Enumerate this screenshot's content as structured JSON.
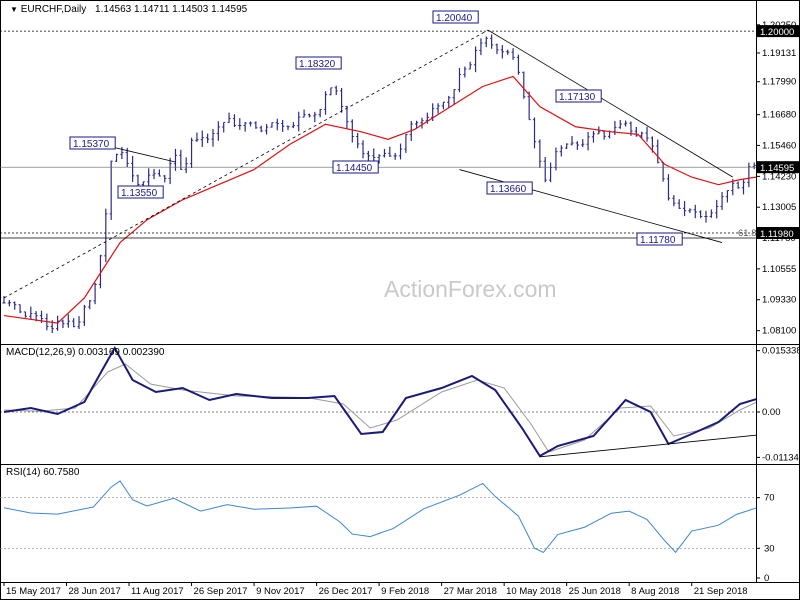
{
  "header": {
    "symbol": "EURCHF,Daily",
    "ohlc": "1.14563 1.14711 1.14503 1.14595"
  },
  "watermark": "ActionForex.com",
  "colors": {
    "bars": "#2b2b8a",
    "sma": "#e01010",
    "macd": "#1a1a7a",
    "signal": "#9a9a9a",
    "rsi": "#3a86d8",
    "grid": "#000000",
    "label_border": "#1a1a8a",
    "price_tag_bg": "#000000"
  },
  "chart_data": [
    {
      "type": "line",
      "panel": "price",
      "title": "EURCHF,Daily",
      "ylim": [
        1.0765,
        1.206
      ],
      "yticks": [
        "1.20250",
        "1.19131",
        "1.17990",
        "1.16680",
        "1.15460",
        "1.14230",
        "1.13005",
        "1.11780",
        "1.10555",
        "1.09330",
        "1.08100"
      ],
      "xticks": [
        "15 May 2017",
        "28 Jun 2017",
        "11 Aug 2017",
        "26 Sep 2017",
        "9 Nov 2017",
        "26 Dec 2017",
        "9 Feb 2018",
        "27 Mar 2018",
        "10 May 2018",
        "25 Jun 2018",
        "8 Aug 2018",
        "21 Sep 2018"
      ],
      "close_path": [
        [
          0,
          1.092
        ],
        [
          10,
          1.089
        ],
        [
          20,
          1.085
        ],
        [
          30,
          1.083
        ],
        [
          40,
          1.083
        ],
        [
          50,
          1.095
        ],
        [
          55,
          1.116
        ],
        [
          60,
          1.148
        ],
        [
          64,
          1.152
        ],
        [
          70,
          1.148
        ],
        [
          75,
          1.138
        ],
        [
          80,
          1.141
        ],
        [
          85,
          1.146
        ],
        [
          90,
          1.14
        ],
        [
          95,
          1.15
        ],
        [
          100,
          1.145
        ],
        [
          105,
          1.155
        ],
        [
          110,
          1.156
        ],
        [
          118,
          1.16
        ],
        [
          125,
          1.165
        ],
        [
          135,
          1.162
        ],
        [
          145,
          1.162
        ],
        [
          155,
          1.162
        ],
        [
          165,
          1.165
        ],
        [
          175,
          1.168
        ],
        [
          185,
          1.178
        ],
        [
          190,
          1.17
        ],
        [
          195,
          1.157
        ],
        [
          205,
          1.15
        ],
        [
          215,
          1.15
        ],
        [
          220,
          1.152
        ],
        [
          230,
          1.164
        ],
        [
          240,
          1.168
        ],
        [
          250,
          1.175
        ],
        [
          260,
          1.187
        ],
        [
          268,
          1.198
        ],
        [
          273,
          1.194
        ],
        [
          280,
          1.193
        ],
        [
          287,
          1.186
        ],
        [
          292,
          1.172
        ],
        [
          297,
          1.156
        ],
        [
          303,
          1.14
        ],
        [
          308,
          1.152
        ],
        [
          318,
          1.154
        ],
        [
          328,
          1.157
        ],
        [
          338,
          1.16
        ],
        [
          348,
          1.163
        ],
        [
          355,
          1.159
        ],
        [
          362,
          1.156
        ],
        [
          368,
          1.145
        ],
        [
          372,
          1.132
        ],
        [
          378,
          1.128
        ],
        [
          383,
          1.132
        ],
        [
          388,
          1.125
        ],
        [
          393,
          1.126
        ],
        [
          398,
          1.13
        ],
        [
          403,
          1.134
        ],
        [
          408,
          1.138
        ],
        [
          413,
          1.14
        ],
        [
          418,
          1.146
        ],
        [
          421,
          1.146
        ]
      ],
      "sma_path": [
        [
          0,
          1.087
        ],
        [
          30,
          1.084
        ],
        [
          45,
          1.094
        ],
        [
          55,
          1.105
        ],
        [
          65,
          1.116
        ],
        [
          80,
          1.125
        ],
        [
          100,
          1.133
        ],
        [
          120,
          1.139
        ],
        [
          140,
          1.145
        ],
        [
          160,
          1.155
        ],
        [
          180,
          1.163
        ],
        [
          200,
          1.16
        ],
        [
          215,
          1.157
        ],
        [
          230,
          1.161
        ],
        [
          250,
          1.17
        ],
        [
          268,
          1.178
        ],
        [
          285,
          1.182
        ],
        [
          300,
          1.17
        ],
        [
          320,
          1.162
        ],
        [
          340,
          1.16
        ],
        [
          355,
          1.159
        ],
        [
          370,
          1.147
        ],
        [
          385,
          1.142
        ],
        [
          400,
          1.139
        ],
        [
          412,
          1.141
        ],
        [
          421,
          1.142
        ]
      ],
      "annotations": [
        "1.15370",
        "1.18320",
        "1.20040",
        "1.13550",
        "1.14450",
        "1.13660",
        "1.17130",
        "1.11780"
      ],
      "price_tags": [
        "1.20000",
        "1.14595",
        "1.11980"
      ],
      "fib_label": "61.8"
    },
    {
      "type": "line",
      "panel": "macd",
      "title": "MACD(12,26,9) 0.003169 0.002390",
      "ylim": [
        -0.0125,
        0.0165
      ],
      "yticks": [
        "0.015338",
        "0.00",
        "-0.011344"
      ],
      "series": [
        {
          "values": [
            [
              0,
              0.0
            ],
            [
              15,
              0.001
            ],
            [
              30,
              -0.0005
            ],
            [
              45,
              0.0025
            ],
            [
              55,
              0.0105
            ],
            [
              62,
              0.016
            ],
            [
              72,
              0.008
            ],
            [
              85,
              0.005
            ],
            [
              100,
              0.006
            ],
            [
              115,
              0.003
            ],
            [
              130,
              0.0045
            ],
            [
              150,
              0.0035
            ],
            [
              170,
              0.0035
            ],
            [
              185,
              0.004
            ],
            [
              200,
              -0.0055
            ],
            [
              212,
              -0.005
            ],
            [
              225,
              0.0035
            ],
            [
              245,
              0.006
            ],
            [
              262,
              0.009
            ],
            [
              275,
              0.0055
            ],
            [
              290,
              -0.004
            ],
            [
              300,
              -0.011
            ],
            [
              310,
              -0.0085
            ],
            [
              330,
              -0.006
            ],
            [
              348,
              0.003
            ],
            [
              362,
              0.0
            ],
            [
              372,
              -0.008
            ],
            [
              385,
              -0.0055
            ],
            [
              400,
              -0.0025
            ],
            [
              412,
              0.002
            ],
            [
              421,
              0.0032
            ]
          ]
        },
        {
          "values": [
            [
              0,
              0.0005
            ],
            [
              20,
              0.0002
            ],
            [
              40,
              0.001
            ],
            [
              58,
              0.01
            ],
            [
              68,
              0.012
            ],
            [
              82,
              0.007
            ],
            [
              100,
              0.0055
            ],
            [
              130,
              0.004
            ],
            [
              170,
              0.0036
            ],
            [
              190,
              0.002
            ],
            [
              205,
              -0.004
            ],
            [
              220,
              -0.002
            ],
            [
              245,
              0.005
            ],
            [
              265,
              0.008
            ],
            [
              280,
              0.006
            ],
            [
              295,
              -0.003
            ],
            [
              305,
              -0.01
            ],
            [
              325,
              -0.007
            ],
            [
              345,
              0.001
            ],
            [
              362,
              0.0015
            ],
            [
              375,
              -0.006
            ],
            [
              395,
              -0.004
            ],
            [
              412,
              0.0005
            ],
            [
              421,
              0.0024
            ]
          ]
        }
      ]
    },
    {
      "type": "line",
      "panel": "rsi",
      "title": "RSI(14) 60.7580",
      "ylim": [
        5,
        95
      ],
      "yticks": [
        "70",
        "30",
        "0"
      ],
      "series": [
        {
          "values": [
            [
              0,
              62
            ],
            [
              15,
              57
            ],
            [
              30,
              55
            ],
            [
              50,
              62
            ],
            [
              60,
              78
            ],
            [
              65,
              83
            ],
            [
              72,
              70
            ],
            [
              80,
              62
            ],
            [
              95,
              68
            ],
            [
              110,
              59
            ],
            [
              125,
              63
            ],
            [
              140,
              60
            ],
            [
              160,
              62
            ],
            [
              175,
              64
            ],
            [
              188,
              52
            ],
            [
              195,
              40
            ],
            [
              205,
              40
            ],
            [
              218,
              46
            ],
            [
              235,
              62
            ],
            [
              255,
              70
            ],
            [
              268,
              80
            ],
            [
              275,
              72
            ],
            [
              288,
              55
            ],
            [
              297,
              30
            ],
            [
              302,
              25
            ],
            [
              310,
              42
            ],
            [
              325,
              48
            ],
            [
              340,
              58
            ],
            [
              350,
              60
            ],
            [
              360,
              52
            ],
            [
              370,
              36
            ],
            [
              376,
              26
            ],
            [
              385,
              44
            ],
            [
              400,
              50
            ],
            [
              410,
              58
            ],
            [
              421,
              61
            ]
          ]
        }
      ]
    }
  ]
}
